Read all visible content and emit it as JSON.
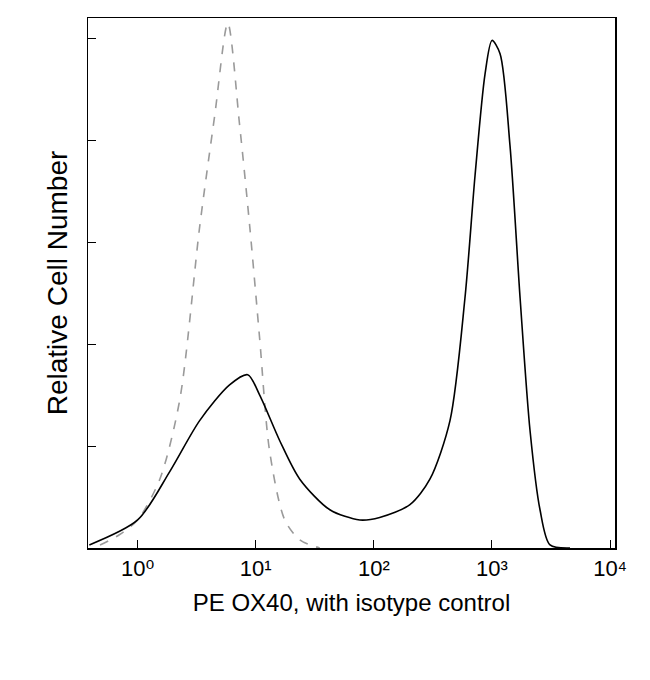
{
  "chart_data": {
    "type": "line",
    "x_label": "PE OX40, with isotype control",
    "y_label": "Relative Cell Number",
    "log": "x",
    "xlim": [
      0.38,
      11000
    ],
    "xticks": [
      {
        "value": 1,
        "label": "10⁰"
      },
      {
        "value": 10,
        "label": "10¹"
      },
      {
        "value": 100,
        "label": "10²"
      },
      {
        "value": 1000,
        "label": "10³"
      },
      {
        "value": 10000,
        "label": "10⁴"
      }
    ],
    "ylim": [
      0,
      104
    ],
    "yticks": [
      0,
      20,
      40,
      60,
      80,
      100
    ],
    "tick_labels": "x",
    "grid": false,
    "series": [
      {
        "color": "#9a9a9a",
        "line_style": "dashed",
        "x": [
          0.48,
          0.7,
          1,
          1.54,
          2.27,
          3.35,
          4.5,
          5.8,
          7.3,
          8.9,
          10.8,
          13.1,
          17.6,
          23.6,
          34.8
        ],
        "values": [
          0.6,
          2.6,
          5.5,
          13.5,
          29,
          63,
          85,
          103,
          83,
          63,
          41,
          19,
          5.5,
          1.6,
          0
        ]
      },
      {
        "color": "#000000",
        "line_style": "solid",
        "x": [
          0.39,
          1,
          1.87,
          3.35,
          6.0,
          8.55,
          10.8,
          16.0,
          23.6,
          42.4,
          76,
          112,
          202,
          298,
          441,
          590,
          718,
          873,
          1000,
          1170,
          1420,
          1730,
          2100,
          2550,
          3100,
          4580
        ],
        "values": [
          0.6,
          5.5,
          15,
          25,
          32,
          34,
          30,
          21,
          13.5,
          7.5,
          5.5,
          6,
          8.5,
          13.5,
          25,
          49,
          73,
          93,
          99.6,
          97,
          79,
          49,
          23,
          7.5,
          0.6,
          0
        ]
      }
    ]
  }
}
